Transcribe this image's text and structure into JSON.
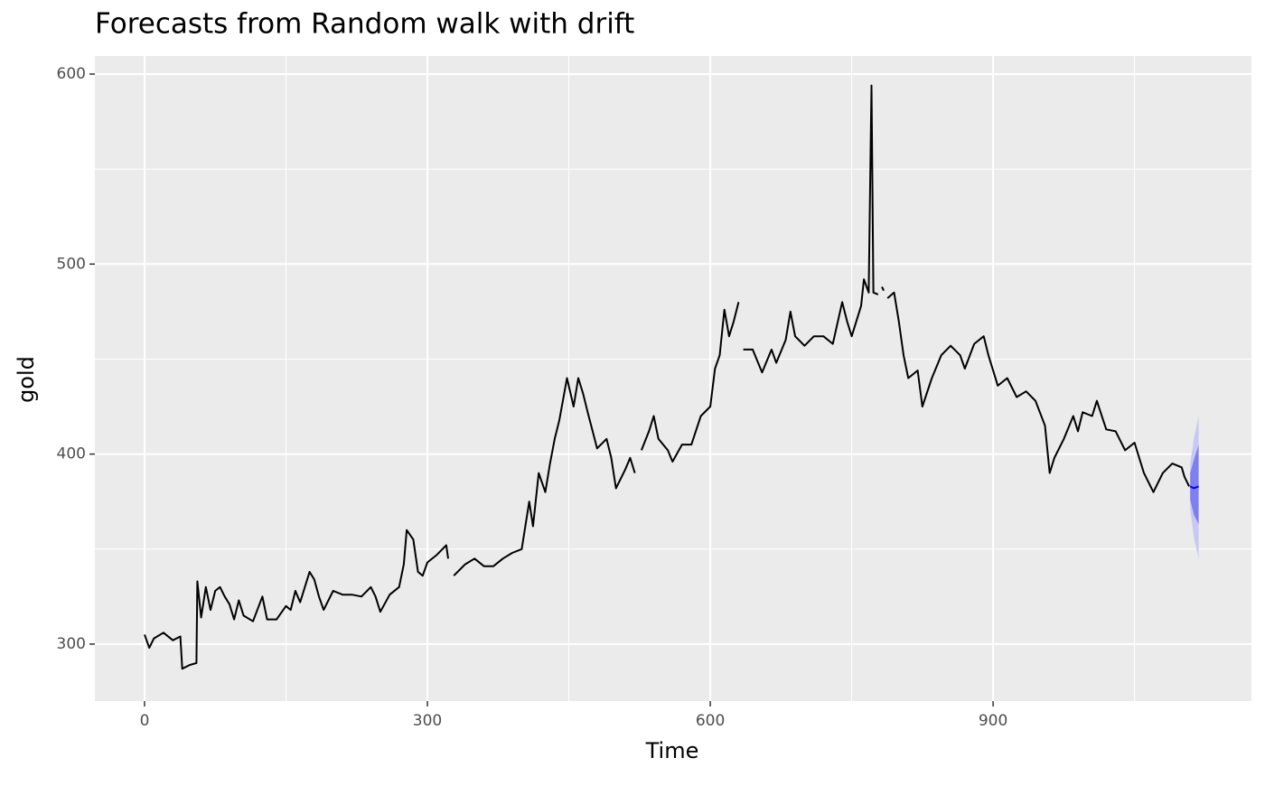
{
  "chart_data": {
    "type": "line",
    "title": "Forecasts from Random walk with drift",
    "x_label": "Time",
    "y_label": "gold",
    "x": [
      0,
      5,
      10,
      20,
      30,
      38,
      40,
      48,
      55,
      56,
      60,
      65,
      70,
      75,
      80,
      85,
      90,
      95,
      100,
      105,
      115,
      125,
      130,
      140,
      150,
      155,
      160,
      165,
      170,
      175,
      180,
      185,
      190,
      200,
      210,
      220,
      230,
      240,
      245,
      250,
      260,
      270,
      275,
      278,
      285,
      290,
      295,
      300,
      310,
      320,
      322,
      325,
      328,
      340,
      350,
      360,
      370,
      380,
      390,
      400,
      408,
      412,
      418,
      425,
      430,
      435,
      440,
      448,
      455,
      460,
      465,
      470,
      480,
      490,
      495,
      500,
      510,
      515,
      520,
      524,
      527,
      535,
      540,
      545,
      555,
      560,
      570,
      580,
      590,
      600,
      605,
      610,
      615,
      620,
      625,
      630,
      632,
      635,
      645,
      655,
      665,
      670,
      680,
      685,
      690,
      700,
      710,
      720,
      730,
      740,
      745,
      750,
      760,
      763,
      768,
      771,
      773,
      778,
      780,
      782,
      784,
      786,
      788,
      795,
      800,
      805,
      810,
      820,
      825,
      835,
      845,
      855,
      865,
      870,
      880,
      890,
      895,
      905,
      915,
      925,
      935,
      945,
      955,
      960,
      965,
      975,
      985,
      990,
      995,
      1005,
      1010,
      1020,
      1030,
      1040,
      1050,
      1060,
      1070,
      1080,
      1090,
      1100,
      1103,
      1108
    ],
    "series": [
      {
        "color": "#000000",
        "values": [
          305,
          298,
          303,
          306,
          302,
          304,
          287,
          289,
          290,
          333,
          314,
          330,
          318,
          328,
          330,
          325,
          321,
          313,
          323,
          315,
          312,
          325,
          313,
          313,
          320,
          318,
          328,
          322,
          330,
          338,
          334,
          325,
          318,
          328,
          326,
          326,
          325,
          330,
          325,
          317,
          326,
          330,
          342,
          360,
          355,
          338,
          336,
          343,
          347,
          352,
          345,
          null,
          336,
          342,
          345,
          341,
          341,
          345,
          348,
          350,
          375,
          362,
          390,
          380,
          395,
          408,
          418,
          440,
          425,
          440,
          432,
          422,
          403,
          408,
          398,
          382,
          392,
          398,
          390,
          null,
          402,
          412,
          420,
          408,
          402,
          396,
          405,
          405,
          420,
          425,
          445,
          452,
          476,
          462,
          470,
          480,
          null,
          455,
          455,
          443,
          455,
          448,
          460,
          475,
          462,
          457,
          462,
          462,
          458,
          480,
          470,
          462,
          478,
          492,
          485,
          594,
          485,
          484,
          null,
          488,
          486,
          null,
          482,
          485,
          470,
          452,
          440,
          444,
          425,
          440,
          452,
          457,
          452,
          445,
          458,
          462,
          452,
          436,
          440,
          430,
          433,
          428,
          415,
          390,
          398,
          408,
          420,
          412,
          422,
          420,
          428,
          413,
          412,
          402,
          406,
          390,
          380,
          390,
          395,
          393,
          388,
          383
        ]
      }
    ],
    "forecast": {
      "x": [
        1109,
        1113,
        1118
      ],
      "mean": [
        383,
        382,
        383
      ],
      "lower80": [
        376,
        368,
        363
      ],
      "upper80": [
        390,
        397,
        405
      ],
      "lower95": [
        371,
        356,
        345
      ],
      "upper95": [
        395,
        408,
        420
      ],
      "color": "#0000ff",
      "band_colors": [
        "#c8c8f5",
        "#7f7ff0"
      ]
    },
    "xlim": [
      -52.7,
      1174
    ],
    "ylim": [
      270,
      609.5
    ],
    "xticks": [
      0,
      300,
      600,
      900
    ],
    "yticks": [
      300,
      400,
      500,
      600
    ],
    "xminor": [
      150,
      450,
      750,
      1050
    ],
    "yminor": [
      350,
      450,
      550
    ],
    "grid": true
  }
}
